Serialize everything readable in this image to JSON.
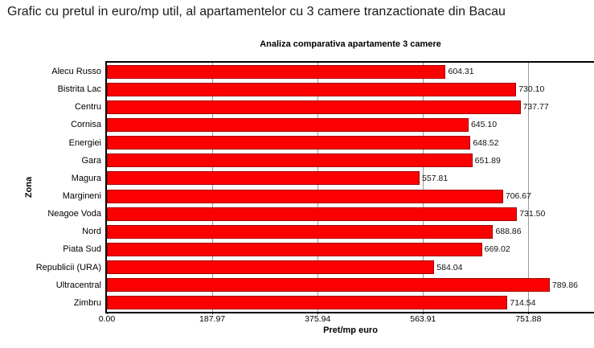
{
  "header": {
    "title": "Grafic cu pretul in euro/mp util, al apartamentelor cu 3 camere tranzactionate din Bacau"
  },
  "chart_data": {
    "type": "bar",
    "orientation": "horizontal",
    "title": "Analiza comparativa apartamente 3 camere",
    "xlabel": "Pret/mp euro",
    "ylabel": "Zona",
    "categories": [
      "Alecu Russo",
      "Bistrita Lac",
      "Centru",
      "Cornisa",
      "Energiei",
      "Gara",
      "Magura",
      "Margineni",
      "Neagoe Voda",
      "Nord",
      "Piata Sud",
      "Republicii (URA)",
      "Ultracentral",
      "Zimbru"
    ],
    "values": [
      604.31,
      730.1,
      737.77,
      645.1,
      648.52,
      651.89,
      557.81,
      706.67,
      731.5,
      688.86,
      669.02,
      584.04,
      789.86,
      714.54
    ],
    "value_labels": [
      "604.31",
      "730.10",
      "737.77",
      "645.10",
      "648.52",
      "651.89",
      "557.81",
      "706.67",
      "731.50",
      "688.86",
      "669.02",
      "584.04",
      "789.86",
      "714.54"
    ],
    "xlim": [
      0,
      868.85
    ],
    "xticks": [
      0,
      187.97,
      375.94,
      563.91,
      751.88
    ],
    "xtick_labels": [
      "0.00",
      "187.97",
      "375.94",
      "563.91",
      "751.88"
    ],
    "grid": "vertical",
    "legend": "none",
    "colors": {
      "bar_fill": "#fb0000",
      "bar_border": "#a50000",
      "gridline": "#9a9a9a",
      "axis_border": "#000000",
      "text": "#000000"
    }
  }
}
